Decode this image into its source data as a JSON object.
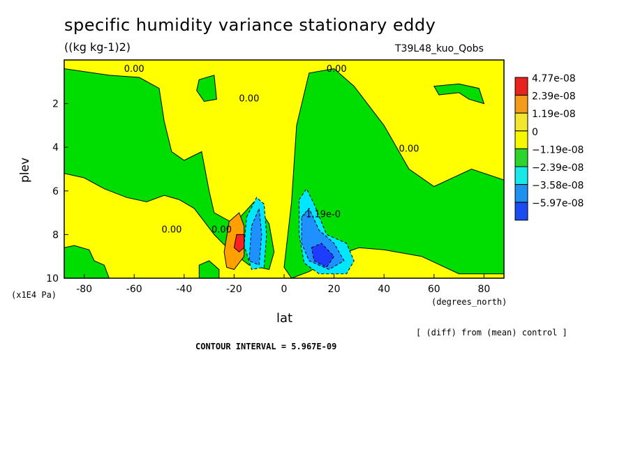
{
  "chart_data": {
    "type": "heatmap",
    "title": "specific humidity variance stationary eddy",
    "units": "((kg kg-1)2)",
    "run_label": "T39L48_kuo_Qobs",
    "xlabel": "lat",
    "xunit": "(degrees_north)",
    "ylabel": "plev",
    "yunit": "(x1E4 Pa)",
    "xlim": [
      -88,
      88
    ],
    "ylim": [
      10,
      0
    ],
    "x_ticks": [
      {
        "v": -80,
        "label": "-80"
      },
      {
        "v": -60,
        "label": "-60"
      },
      {
        "v": -40,
        "label": "-40"
      },
      {
        "v": -20,
        "label": "-20"
      },
      {
        "v": 0,
        "label": "0"
      },
      {
        "v": 20,
        "label": "20"
      },
      {
        "v": 40,
        "label": "40"
      },
      {
        "v": 60,
        "label": "60"
      },
      {
        "v": 80,
        "label": "80"
      }
    ],
    "y_ticks": [
      {
        "v": 2,
        "label": "2"
      },
      {
        "v": 4,
        "label": "4"
      },
      {
        "v": 6,
        "label": "6"
      },
      {
        "v": 8,
        "label": "8"
      },
      {
        "v": 10,
        "label": "10"
      }
    ],
    "legend": {
      "placement": "right",
      "colors": [
        "#e8221e",
        "#f39c1b",
        "#f2e62e",
        "#f7f700",
        "#2ed42e",
        "#19e8e8",
        "#1e90f0",
        "#1a4cf0"
      ],
      "labels": [
        "4.77e-08",
        "2.39e-08",
        "1.19e-08",
        "0",
        "−1.19e-08",
        "−2.39e-08",
        "−3.58e-08",
        "−5.97e-08"
      ]
    },
    "background_color": "#ffff00",
    "regions": [
      {
        "level": "negative_small",
        "color": "#00dd00",
        "points": [
          [
            0,
            9.5
          ],
          [
            3,
            6.5
          ],
          [
            5,
            3
          ],
          [
            10,
            0.6
          ],
          [
            20,
            0.4
          ],
          [
            28,
            1.2
          ],
          [
            40,
            3
          ],
          [
            50,
            5
          ],
          [
            60,
            5.8
          ],
          [
            75,
            5
          ],
          [
            88,
            5.5
          ],
          [
            88,
            9.8
          ],
          [
            70,
            9.8
          ],
          [
            55,
            9
          ],
          [
            40,
            8.7
          ],
          [
            30,
            8.6
          ],
          [
            20,
            9
          ],
          [
            10,
            9.7
          ],
          [
            3,
            10
          ]
        ]
      },
      {
        "level": "negative_small",
        "color": "#00dd00",
        "points": [
          [
            -88,
            0.4
          ],
          [
            -70,
            0.7
          ],
          [
            -58,
            0.8
          ],
          [
            -50,
            1.3
          ],
          [
            -48,
            2.8
          ],
          [
            -45,
            4.2
          ],
          [
            -40,
            4.6
          ],
          [
            -33,
            4.2
          ],
          [
            -30,
            6
          ],
          [
            -28,
            7
          ],
          [
            -20,
            7.5
          ],
          [
            -12,
            6.5
          ],
          [
            -6,
            7.5
          ],
          [
            -4,
            8.8
          ],
          [
            -6,
            9.6
          ],
          [
            -14,
            9.4
          ],
          [
            -22,
            8.7
          ],
          [
            -28,
            8
          ],
          [
            -32,
            7.4
          ],
          [
            -36,
            6.8
          ],
          [
            -42,
            6.4
          ],
          [
            -48,
            6.2
          ],
          [
            -55,
            6.5
          ],
          [
            -63,
            6.3
          ],
          [
            -72,
            5.9
          ],
          [
            -80,
            5.4
          ],
          [
            -88,
            5.2
          ]
        ]
      },
      {
        "level": "negative_small",
        "color": "#00dd00",
        "points": [
          [
            -88,
            8.6
          ],
          [
            -84,
            8.5
          ],
          [
            -78,
            8.7
          ],
          [
            -76,
            9.2
          ],
          [
            -72,
            9.4
          ],
          [
            -70,
            10
          ],
          [
            -88,
            10
          ]
        ]
      },
      {
        "level": "negative_small",
        "color": "#00dd00",
        "points": [
          [
            -34,
            9.4
          ],
          [
            -30,
            9.2
          ],
          [
            -26,
            9.6
          ],
          [
            -26,
            10
          ],
          [
            -34,
            10
          ]
        ]
      },
      {
        "level": "negative_small",
        "color": "#00dd00",
        "points": [
          [
            -34,
            0.9
          ],
          [
            -28,
            0.7
          ],
          [
            -27,
            1.8
          ],
          [
            -32,
            1.9
          ],
          [
            -35,
            1.4
          ]
        ]
      },
      {
        "level": "negative_small",
        "color": "#00dd00",
        "points": [
          [
            60,
            1.2
          ],
          [
            70,
            1.1
          ],
          [
            78,
            1.3
          ],
          [
            80,
            2
          ],
          [
            74,
            1.8
          ],
          [
            70,
            1.5
          ],
          [
            62,
            1.6
          ]
        ]
      },
      {
        "level": "negative_medium",
        "color": "#00e6ff",
        "points": [
          [
            -15,
            7.2
          ],
          [
            -11,
            6.3
          ],
          [
            -8,
            6.6
          ],
          [
            -7,
            8
          ],
          [
            -8,
            9.5
          ],
          [
            -13,
            9.6
          ],
          [
            -16,
            8.5
          ]
        ]
      },
      {
        "level": "negative_medium",
        "color": "#00e6ff",
        "points": [
          [
            6,
            6.4
          ],
          [
            9,
            5.9
          ],
          [
            12,
            6.6
          ],
          [
            17,
            8
          ],
          [
            25,
            8.4
          ],
          [
            28,
            9.2
          ],
          [
            25,
            9.8
          ],
          [
            14,
            9.8
          ],
          [
            8,
            9.3
          ],
          [
            6,
            8
          ]
        ]
      },
      {
        "level": "negative_large",
        "color": "#1e90ff",
        "points": [
          [
            -13,
            7.6
          ],
          [
            -10,
            6.8
          ],
          [
            -9,
            8
          ],
          [
            -10,
            9.4
          ],
          [
            -14,
            9.2
          ]
        ]
      },
      {
        "level": "negative_large",
        "color": "#1e90ff",
        "points": [
          [
            7,
            7.2
          ],
          [
            10,
            6.8
          ],
          [
            14,
            7.8
          ],
          [
            20,
            8.4
          ],
          [
            24,
            9.2
          ],
          [
            18,
            9.6
          ],
          [
            10,
            9.2
          ],
          [
            7,
            8.4
          ]
        ]
      },
      {
        "level": "negative_max",
        "color": "#1e3cff",
        "points": [
          [
            11,
            8.6
          ],
          [
            15,
            8.4
          ],
          [
            20,
            9
          ],
          [
            17,
            9.5
          ],
          [
            12,
            9.2
          ]
        ]
      },
      {
        "level": "positive_small",
        "color": "#ff9f00",
        "points": [
          [
            -24,
            8.8
          ],
          [
            -22,
            7.4
          ],
          [
            -18,
            7
          ],
          [
            -16,
            7.6
          ],
          [
            -16,
            9
          ],
          [
            -20,
            9.6
          ],
          [
            -23,
            9.5
          ]
        ]
      },
      {
        "level": "positive_large",
        "color": "#ff2020",
        "points": [
          [
            -20,
            8.6
          ],
          [
            -19,
            8.0
          ],
          [
            -16,
            8.0
          ],
          [
            -16,
            8.6
          ],
          [
            -18,
            8.8
          ]
        ]
      }
    ],
    "contour_labels": [
      {
        "x": -60,
        "y": 0.55,
        "text": "0.00"
      },
      {
        "x": -14,
        "y": 1.9,
        "text": "0.00"
      },
      {
        "x": 21,
        "y": 0.55,
        "text": "0.00"
      },
      {
        "x": -45,
        "y": 7.9,
        "text": "0.00"
      },
      {
        "x": -25,
        "y": 7.9,
        "text": "0.00"
      },
      {
        "x": 50,
        "y": 4.2,
        "text": "0.00"
      },
      {
        "x": 15,
        "y": 7.2,
        "text": "-1.19e-0"
      }
    ],
    "note": "[ (diff) from (mean) control ]",
    "contour_interval": "CONTOUR INTERVAL = 5.967E-09"
  }
}
